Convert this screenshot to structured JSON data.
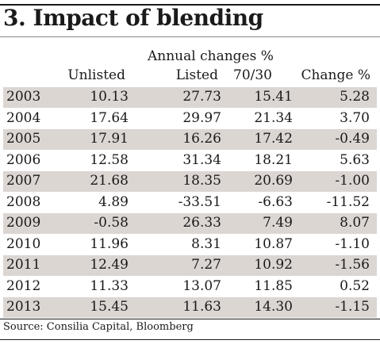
{
  "title": "3. Impact of blending",
  "group_header": "Annual changes %",
  "columns": [
    "",
    "Unlisted",
    "Listed",
    "70/30",
    "Change %"
  ],
  "source": "Source: Consilia Capital, Bloomberg",
  "colors": {
    "shade": "#dcd6d3",
    "text": "#1a1a1a"
  },
  "chart_data": {
    "type": "table",
    "title": "3. Impact of blending",
    "group_header": "Annual changes %",
    "columns": [
      "",
      "Unlisted",
      "Listed",
      "70/30",
      "Change %"
    ],
    "rows": [
      [
        "2003",
        "10.13",
        "27.73",
        "15.41",
        "5.28"
      ],
      [
        "2004",
        "17.64",
        "29.97",
        "21.34",
        "3.70"
      ],
      [
        "2005",
        "17.91",
        "16.26",
        "17.42",
        "-0.49"
      ],
      [
        "2006",
        "12.58",
        "31.34",
        "18.21",
        "5.63"
      ],
      [
        "2007",
        "21.68",
        "18.35",
        "20.69",
        "-1.00"
      ],
      [
        "2008",
        "4.89",
        "-33.51",
        "-6.63",
        "-11.52"
      ],
      [
        "2009",
        "-0.58",
        "26.33",
        "7.49",
        "8.07"
      ],
      [
        "2010",
        "11.96",
        "8.31",
        "10.87",
        "-1.10"
      ],
      [
        "2011",
        "12.49",
        "7.27",
        "10.92",
        "-1.56"
      ],
      [
        "2012",
        "11.33",
        "13.07",
        "11.85",
        "0.52"
      ],
      [
        "2013",
        "15.45",
        "11.63",
        "14.30",
        "-1.15"
      ]
    ],
    "source": "Source: Consilia Capital, Bloomberg"
  }
}
